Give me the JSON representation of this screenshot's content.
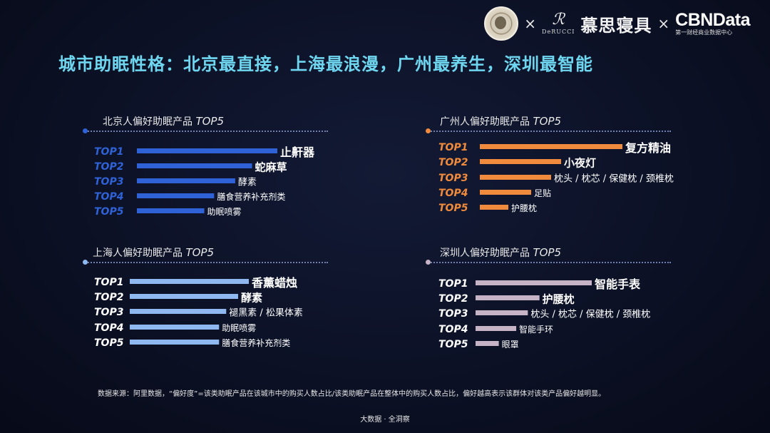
{
  "header": {
    "times1": "×",
    "derucci_mark": "ℛ",
    "derucci_word": "DeRUCCI",
    "brand_cn": "慕思寝具",
    "times2": "×",
    "cbn_big": "CBNData",
    "cbn_small": "第一财经商业数据中心"
  },
  "title": "城市助眠性格：北京最直接，上海最浪漫，广州最养生，深圳最智能",
  "colors": {
    "beijing": "#2f62d6",
    "shanghai": "#8fb8f0",
    "guangzhou": "#f08a3c",
    "shenzhen": "#c7b3c6",
    "title": "#6fd6f0"
  },
  "panels": [
    {
      "id": "beijing",
      "title_cn": "北京人偏好助眠产品",
      "title_en": "TOP5"
    },
    {
      "id": "guangzhou",
      "title_cn": "广州人偏好助眠产品",
      "title_en": "TOP5"
    },
    {
      "id": "shanghai",
      "title_cn": "上海人偏好助眠产品",
      "title_en": "TOP5"
    },
    {
      "id": "shenzhen",
      "title_cn": "深圳人偏好助眠产品",
      "title_en": "TOP5"
    }
  ],
  "chart_data": [
    {
      "type": "bar",
      "name": "beijing",
      "title": "北京人偏好助眠产品 TOP5",
      "categories": [
        "TOP1",
        "TOP2",
        "TOP3",
        "TOP4",
        "TOP5"
      ],
      "items": [
        "止鼾器",
        "蛇麻草",
        "酵素",
        "膳食营养补充剂类",
        "助眠喷雾"
      ],
      "values": [
        100,
        82,
        70,
        55,
        48
      ]
    },
    {
      "type": "bar",
      "name": "guangzhou",
      "title": "广州人偏好助眠产品 TOP5",
      "categories": [
        "TOP1",
        "TOP2",
        "TOP3",
        "TOP4",
        "TOP5"
      ],
      "items": [
        "复方精油",
        "小夜灯",
        "枕头 / 枕芯 / 保健枕 / 颈椎枕",
        "足贴",
        "护腰枕"
      ],
      "values": [
        100,
        57,
        50,
        36,
        20
      ]
    },
    {
      "type": "bar",
      "name": "shanghai",
      "title": "上海人偏好助眠产品 TOP5",
      "categories": [
        "TOP1",
        "TOP2",
        "TOP3",
        "TOP4",
        "TOP5"
      ],
      "items": [
        "香薰蜡烛",
        "酵素",
        "褪黑素 / 松果体素",
        "助眠喷雾",
        "膳食营养补充剂类"
      ],
      "values": [
        100,
        91,
        81,
        75,
        75
      ]
    },
    {
      "type": "bar",
      "name": "shenzhen",
      "title": "深圳人偏好助眠产品 TOP5",
      "categories": [
        "TOP1",
        "TOP2",
        "TOP3",
        "TOP4",
        "TOP5"
      ],
      "items": [
        "智能手表",
        "护腰枕",
        "枕头 / 枕芯 / 保健枕 / 颈椎枕",
        "智能手环",
        "眼罩"
      ],
      "values": [
        100,
        55,
        45,
        35,
        20
      ]
    }
  ],
  "footnote": "数据来源：阿里数据，“偏好度”=该类助眠产品在该城市中的购买人数占比/该类助眠产品在整体中的购买人数占比，偏好越高表示该群体对该类产品偏好越明显。",
  "footer": "大数据 · 全洞察"
}
